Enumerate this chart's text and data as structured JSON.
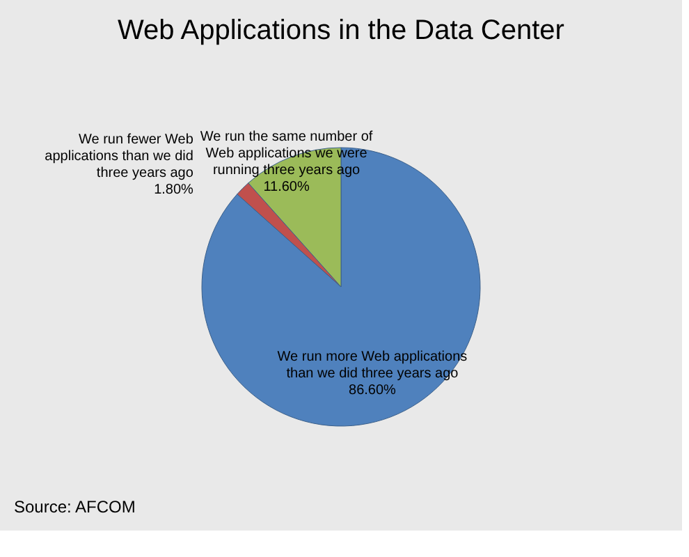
{
  "chart_data": {
    "type": "pie",
    "title": "Web Applications in the Data Center",
    "categories": [
      "We run more Web applications than we did three years ago",
      "We run fewer Web applications than we did three years ago",
      "We run the same number of Web applications we were running three years ago"
    ],
    "values": [
      86.6,
      1.8,
      11.6
    ],
    "value_labels": [
      "86.60%",
      "1.80%",
      "11.60%"
    ],
    "colors": [
      "#4f81bd",
      "#c0504d",
      "#9bbb59"
    ],
    "annotations": [
      "Source: AFCOM"
    ],
    "legend": false
  }
}
